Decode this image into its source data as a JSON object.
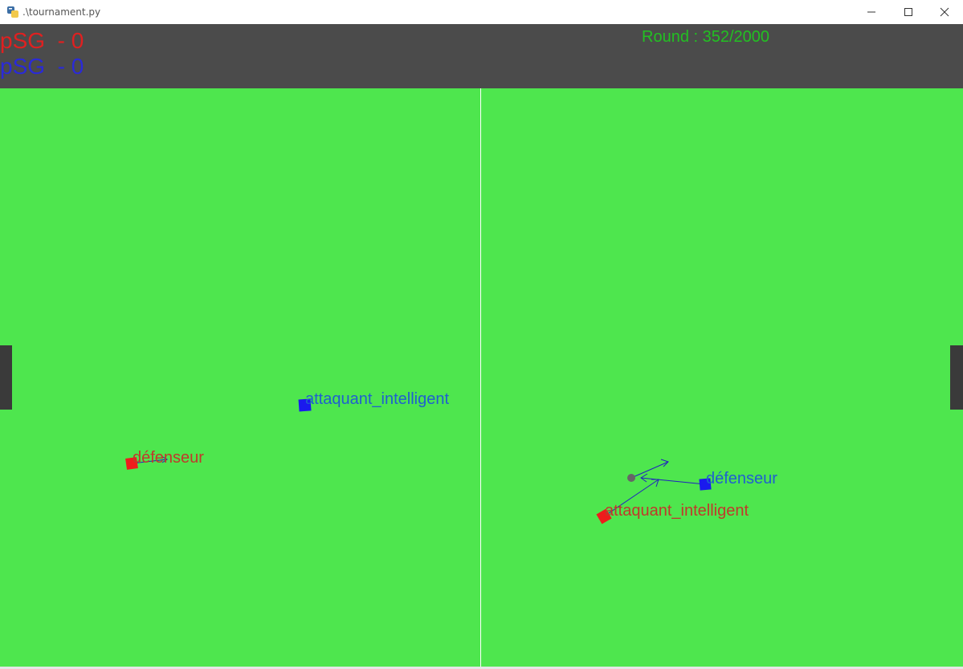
{
  "window": {
    "title": ".\\tournament.py",
    "controls": [
      "minimize-icon",
      "maximize-icon",
      "close-icon"
    ]
  },
  "scoreboard": {
    "team_red": {
      "text": "pSG  - 0",
      "name": "pSG",
      "score": 0,
      "color": "#e02020"
    },
    "team_blue": {
      "text": "pSG  - 0",
      "name": "pSG",
      "score": 0,
      "color": "#2a2ad8"
    },
    "round": {
      "text": "Round : 352/2000",
      "current": 352,
      "total": 2000,
      "color": "#22c022"
    }
  },
  "field": {
    "color": "#4ee64e",
    "midline_color": "#ffffff",
    "goal_color": "#3a3a3a"
  },
  "matches": [
    {
      "players": [
        {
          "label": "défenseur",
          "team": "red",
          "color": "#ee1c1c",
          "label_color": "#c0392b"
        },
        {
          "label": "attaquant_intelligent",
          "team": "blue",
          "color": "#1a1aee",
          "label_color": "#1f5fd0"
        }
      ]
    },
    {
      "players": [
        {
          "label": "attaquant_intelligent",
          "team": "red",
          "color": "#ee1c1c",
          "label_color": "#c0392b"
        },
        {
          "label": "défenseur",
          "team": "blue",
          "color": "#1a1aee",
          "label_color": "#1f5fd0"
        }
      ],
      "ball": {
        "color": "#666666"
      }
    }
  ]
}
